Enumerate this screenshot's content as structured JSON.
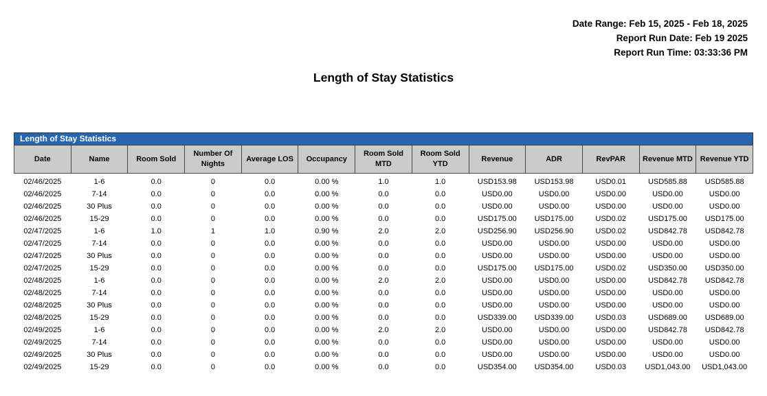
{
  "report_header": {
    "date_range": "Date Range: Feb 15, 2025 - Feb 18, 2025",
    "run_date": "Report Run Date: Feb 19 2025",
    "run_time": "Report Run Time: 03:33:36 PM"
  },
  "page_title": "Length of Stay Statistics",
  "colors": {
    "table_title_bar": "#2766ae",
    "table_header_bg": "#cbcbcb",
    "table_border": "#444444"
  },
  "table": {
    "title": "Length of Stay Statistics",
    "columns": [
      "Date",
      "Name",
      "Room Sold",
      "Number Of Nights",
      "Average LOS",
      "Occupancy",
      "Room Sold MTD",
      "Room Sold YTD",
      "Revenue",
      "ADR",
      "RevPAR",
      "Revenue MTD",
      "Revenue YTD"
    ],
    "rows": [
      [
        "02/46/2025",
        "1-6",
        "0.0",
        "0",
        "0.0",
        "0.00 %",
        "1.0",
        "1.0",
        "USD153.98",
        "USD153.98",
        "USD0.01",
        "USD585.88",
        "USD585.88"
      ],
      [
        "02/46/2025",
        "7-14",
        "0.0",
        "0",
        "0.0",
        "0.00 %",
        "0.0",
        "0.0",
        "USD0.00",
        "USD0.00",
        "USD0.00",
        "USD0.00",
        "USD0.00"
      ],
      [
        "02/46/2025",
        "30 Plus",
        "0.0",
        "0",
        "0.0",
        "0.00 %",
        "0.0",
        "0.0",
        "USD0.00",
        "USD0.00",
        "USD0.00",
        "USD0.00",
        "USD0.00"
      ],
      [
        "02/46/2025",
        "15-29",
        "0.0",
        "0",
        "0.0",
        "0.00 %",
        "0.0",
        "0.0",
        "USD175.00",
        "USD175.00",
        "USD0.02",
        "USD175.00",
        "USD175.00"
      ],
      [
        "02/47/2025",
        "1-6",
        "1.0",
        "1",
        "1.0",
        "0.90 %",
        "2.0",
        "2.0",
        "USD256.90",
        "USD256.90",
        "USD0.02",
        "USD842.78",
        "USD842.78"
      ],
      [
        "02/47/2025",
        "7-14",
        "0.0",
        "0",
        "0.0",
        "0.00 %",
        "0.0",
        "0.0",
        "USD0.00",
        "USD0.00",
        "USD0.00",
        "USD0.00",
        "USD0.00"
      ],
      [
        "02/47/2025",
        "30 Plus",
        "0.0",
        "0",
        "0.0",
        "0.00 %",
        "0.0",
        "0.0",
        "USD0.00",
        "USD0.00",
        "USD0.00",
        "USD0.00",
        "USD0.00"
      ],
      [
        "02/47/2025",
        "15-29",
        "0.0",
        "0",
        "0.0",
        "0.00 %",
        "0.0",
        "0.0",
        "USD175.00",
        "USD175.00",
        "USD0.02",
        "USD350.00",
        "USD350.00"
      ],
      [
        "02/48/2025",
        "1-6",
        "0.0",
        "0",
        "0.0",
        "0.00 %",
        "2.0",
        "2.0",
        "USD0.00",
        "USD0.00",
        "USD0.00",
        "USD842.78",
        "USD842.78"
      ],
      [
        "02/48/2025",
        "7-14",
        "0.0",
        "0",
        "0.0",
        "0.00 %",
        "0.0",
        "0.0",
        "USD0.00",
        "USD0.00",
        "USD0.00",
        "USD0.00",
        "USD0.00"
      ],
      [
        "02/48/2025",
        "30 Plus",
        "0.0",
        "0",
        "0.0",
        "0.00 %",
        "0.0",
        "0.0",
        "USD0.00",
        "USD0.00",
        "USD0.00",
        "USD0.00",
        "USD0.00"
      ],
      [
        "02/48/2025",
        "15-29",
        "0.0",
        "0",
        "0.0",
        "0.00 %",
        "0.0",
        "0.0",
        "USD339.00",
        "USD339.00",
        "USD0.03",
        "USD689.00",
        "USD689.00"
      ],
      [
        "02/49/2025",
        "1-6",
        "0.0",
        "0",
        "0.0",
        "0.00 %",
        "2.0",
        "2.0",
        "USD0.00",
        "USD0.00",
        "USD0.00",
        "USD842.78",
        "USD842.78"
      ],
      [
        "02/49/2025",
        "7-14",
        "0.0",
        "0",
        "0.0",
        "0.00 %",
        "0.0",
        "0.0",
        "USD0.00",
        "USD0.00",
        "USD0.00",
        "USD0.00",
        "USD0.00"
      ],
      [
        "02/49/2025",
        "30 Plus",
        "0.0",
        "0",
        "0.0",
        "0.00 %",
        "0.0",
        "0.0",
        "USD0.00",
        "USD0.00",
        "USD0.00",
        "USD0.00",
        "USD0.00"
      ],
      [
        "02/49/2025",
        "15-29",
        "0.0",
        "0",
        "0.0",
        "0.00 %",
        "0.0",
        "0.0",
        "USD354.00",
        "USD354.00",
        "USD0.03",
        "USD1,043.00",
        "USD1,043.00"
      ]
    ]
  }
}
